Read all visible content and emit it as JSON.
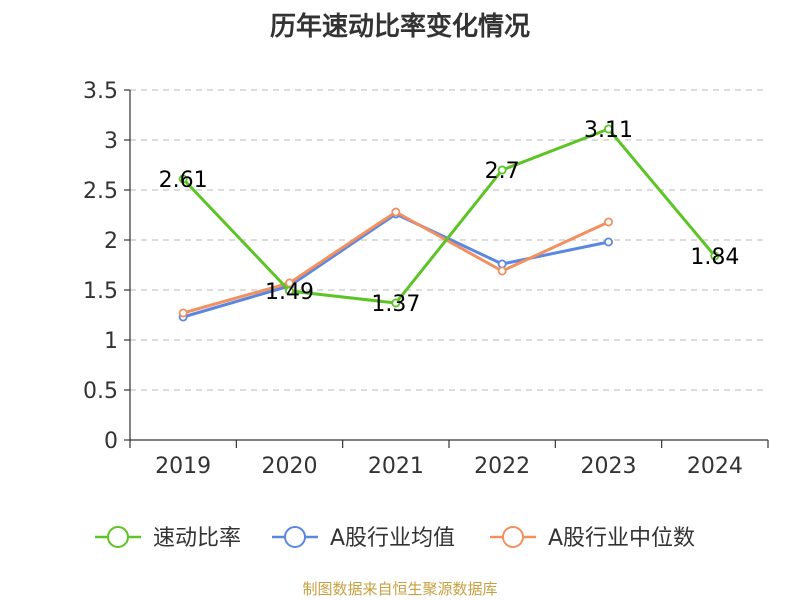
{
  "page": {
    "title": "历年速动比率变化情况",
    "source": "制图数据来自恒生聚源数据库"
  },
  "chart_data": {
    "type": "line",
    "title": "历年速动比率变化情况",
    "categories": [
      "2019",
      "2020",
      "2021",
      "2022",
      "2023",
      "2024"
    ],
    "ylim": [
      0,
      3.5
    ],
    "yticks": [
      0,
      0.5,
      1,
      1.5,
      2,
      2.5,
      3,
      3.5
    ],
    "grid": true,
    "legend_position": "bottom",
    "series": [
      {
        "name": "速动比率",
        "color": "#5cc425",
        "values": [
          2.61,
          1.49,
          1.37,
          2.7,
          3.11,
          1.84
        ],
        "labels": [
          "2.61",
          "1.49",
          "1.37",
          "2.7",
          "3.11",
          "1.84"
        ]
      },
      {
        "name": "A股行业均值",
        "color": "#5b87e0",
        "values": [
          1.23,
          1.54,
          2.26,
          1.76,
          1.98,
          null
        ]
      },
      {
        "name": "A股行业中位数",
        "color": "#f39060",
        "values": [
          1.27,
          1.57,
          2.28,
          1.69,
          2.18,
          null
        ]
      }
    ]
  }
}
